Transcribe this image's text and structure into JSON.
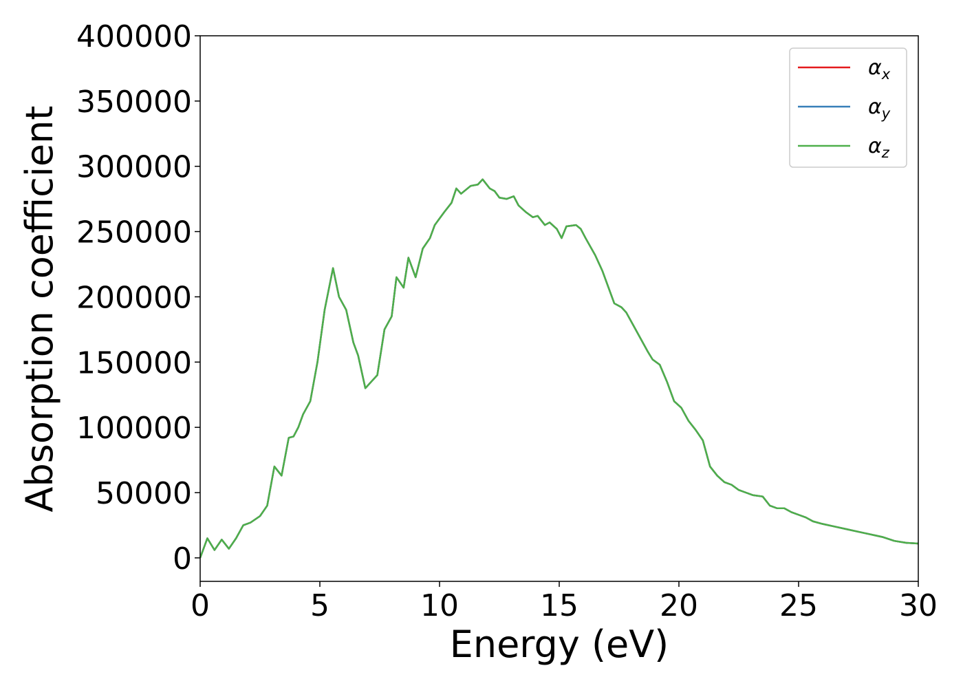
{
  "chart_data": {
    "type": "line",
    "xlabel": "Energy (eV)",
    "ylabel": "Absorption coefficient",
    "x": [
      0,
      0.3,
      0.6,
      0.9,
      1.2,
      1.5,
      1.8,
      2.1,
      2.5,
      2.8,
      3.0,
      3.1,
      3.4,
      3.7,
      3.9,
      4.1,
      4.3,
      4.6,
      4.9,
      5.2,
      5.55,
      5.8,
      6.1,
      6.4,
      6.6,
      6.9,
      7.2,
      7.4,
      7.7,
      8.0,
      8.2,
      8.5,
      8.7,
      9.0,
      9.3,
      9.6,
      9.8,
      10.2,
      10.5,
      10.7,
      10.9,
      11.3,
      11.6,
      11.8,
      12.1,
      12.3,
      12.5,
      12.8,
      13.1,
      13.3,
      13.6,
      13.9,
      14.1,
      14.4,
      14.6,
      14.9,
      15.1,
      15.3,
      15.7,
      15.9,
      16.1,
      16.5,
      16.8,
      17.1,
      17.3,
      17.6,
      17.8,
      18.1,
      18.4,
      18.7,
      18.9,
      19.2,
      19.5,
      19.8,
      20.1,
      20.4,
      20.7,
      21.0,
      21.3,
      21.6,
      21.9,
      22.2,
      22.5,
      22.8,
      23.1,
      23.5,
      23.8,
      24.1,
      24.4,
      24.7,
      25.0,
      25.3,
      25.6,
      26.0,
      26.5,
      27.0,
      27.5,
      28.0,
      28.5,
      29.0,
      29.5,
      30.0
    ],
    "series": [
      {
        "name": "αx",
        "color": "#e41a1c",
        "values": [
          0,
          15000,
          6000,
          14000,
          7000,
          15000,
          25000,
          27000,
          32000,
          40000,
          60000,
          70000,
          63000,
          92000,
          93000,
          100000,
          110000,
          120000,
          150000,
          190000,
          222000,
          200000,
          190000,
          165000,
          155000,
          130000,
          136000,
          140000,
          175000,
          185000,
          215000,
          207000,
          230000,
          215000,
          237000,
          245000,
          255000,
          265000,
          272000,
          283000,
          279000,
          285000,
          286000,
          290000,
          283000,
          281000,
          276000,
          275000,
          277000,
          270000,
          265000,
          261000,
          262000,
          255000,
          257000,
          252000,
          245000,
          254000,
          255000,
          252000,
          245000,
          232000,
          220000,
          205000,
          195000,
          192000,
          188000,
          178000,
          168000,
          158000,
          152000,
          148000,
          135000,
          120000,
          115000,
          105000,
          98000,
          90000,
          70000,
          63000,
          58000,
          56000,
          52000,
          50000,
          48000,
          47000,
          40000,
          38000,
          38000,
          35000,
          33000,
          31000,
          28000,
          26000,
          24000,
          22000,
          20000,
          18000,
          16000,
          13000,
          11500,
          11000
        ]
      },
      {
        "name": "αy",
        "color": "#377eb8",
        "values": [
          0,
          15000,
          6000,
          14000,
          7000,
          15000,
          25000,
          27000,
          32000,
          40000,
          60000,
          70000,
          63000,
          92000,
          93000,
          100000,
          110000,
          120000,
          150000,
          190000,
          222000,
          200000,
          190000,
          165000,
          155000,
          130000,
          136000,
          140000,
          175000,
          185000,
          215000,
          207000,
          230000,
          215000,
          237000,
          245000,
          255000,
          265000,
          272000,
          283000,
          279000,
          285000,
          286000,
          290000,
          283000,
          281000,
          276000,
          275000,
          277000,
          270000,
          265000,
          261000,
          262000,
          255000,
          257000,
          252000,
          245000,
          254000,
          255000,
          252000,
          245000,
          232000,
          220000,
          205000,
          195000,
          192000,
          188000,
          178000,
          168000,
          158000,
          152000,
          148000,
          135000,
          120000,
          115000,
          105000,
          98000,
          90000,
          70000,
          63000,
          58000,
          56000,
          52000,
          50000,
          48000,
          47000,
          40000,
          38000,
          38000,
          35000,
          33000,
          31000,
          28000,
          26000,
          24000,
          22000,
          20000,
          18000,
          16000,
          13000,
          11500,
          11000
        ]
      },
      {
        "name": "αz",
        "color": "#4daf4a",
        "values": [
          0,
          15000,
          6000,
          14000,
          7000,
          15000,
          25000,
          27000,
          32000,
          40000,
          60000,
          70000,
          63000,
          92000,
          93000,
          100000,
          110000,
          120000,
          150000,
          190000,
          222000,
          200000,
          190000,
          165000,
          155000,
          130000,
          136000,
          140000,
          175000,
          185000,
          215000,
          207000,
          230000,
          215000,
          237000,
          245000,
          255000,
          265000,
          272000,
          283000,
          279000,
          285000,
          286000,
          290000,
          283000,
          281000,
          276000,
          275000,
          277000,
          270000,
          265000,
          261000,
          262000,
          255000,
          257000,
          252000,
          245000,
          254000,
          255000,
          252000,
          245000,
          232000,
          220000,
          205000,
          195000,
          192000,
          188000,
          178000,
          168000,
          158000,
          152000,
          148000,
          135000,
          120000,
          115000,
          105000,
          98000,
          90000,
          70000,
          63000,
          58000,
          56000,
          52000,
          50000,
          48000,
          47000,
          40000,
          38000,
          38000,
          35000,
          33000,
          31000,
          28000,
          26000,
          24000,
          22000,
          20000,
          18000,
          16000,
          13000,
          11500,
          11000
        ]
      }
    ],
    "xlim": [
      0,
      30
    ],
    "xticks": [
      0,
      5,
      10,
      15,
      20,
      25,
      30
    ],
    "ylim": [
      -18000,
      400000
    ],
    "yticks": [
      0,
      50000,
      100000,
      150000,
      200000,
      250000,
      300000,
      350000,
      400000
    ],
    "grid": false,
    "legend": "upper right"
  }
}
